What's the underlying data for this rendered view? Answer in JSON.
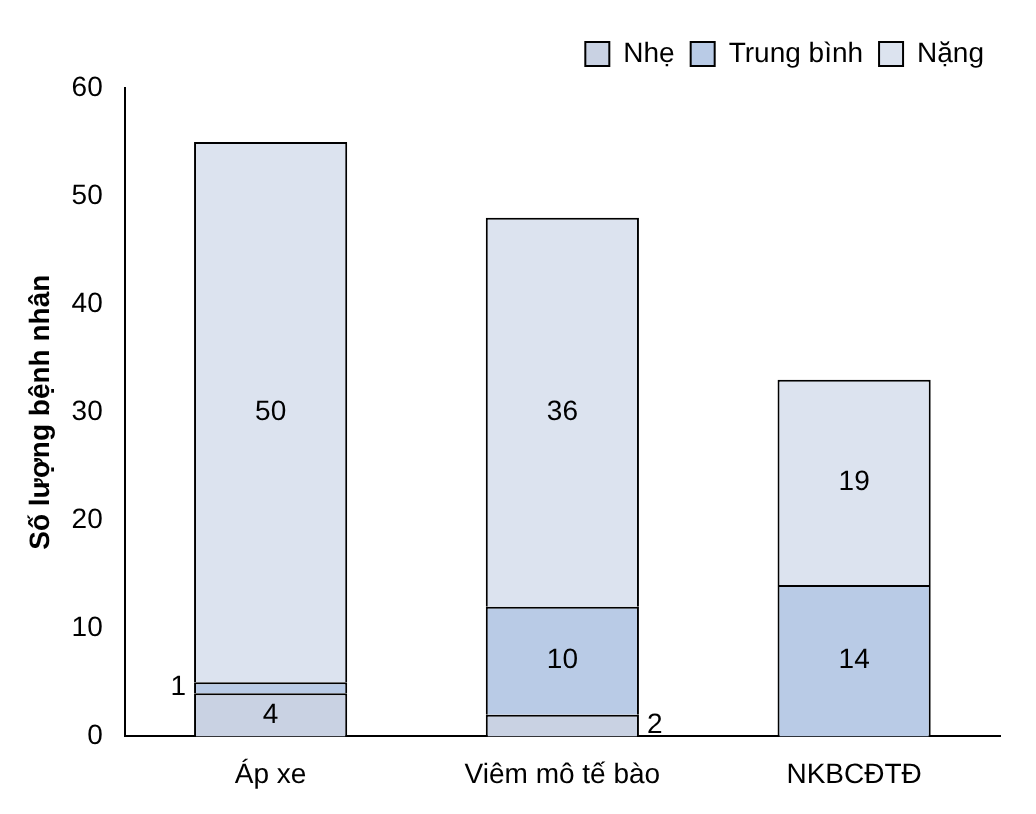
{
  "chart_data": {
    "type": "bar",
    "stacked": true,
    "ylabel": "Số lượng bệnh nhân",
    "categories": [
      "Áp xe",
      "Viêm mô tế bào",
      "NKBCĐTĐ"
    ],
    "series": [
      {
        "name": "Nhẹ",
        "color": "#c9d2e3",
        "values": [
          4,
          2,
          0
        ],
        "value_labels": [
          "4",
          "2",
          null
        ]
      },
      {
        "name": "Trung bình",
        "color": "#b9cbe6",
        "values": [
          1,
          10,
          14
        ],
        "value_labels": [
          "1",
          "10",
          "14"
        ]
      },
      {
        "name": "Nặng",
        "color": "#dce3ef",
        "values": [
          50,
          36,
          19
        ],
        "value_labels": [
          "50",
          "36",
          "19"
        ]
      }
    ],
    "ylim": [
      0,
      60
    ],
    "yticks": [
      0,
      10,
      20,
      30,
      40,
      50,
      60
    ],
    "grid": false,
    "legend": "top right"
  }
}
